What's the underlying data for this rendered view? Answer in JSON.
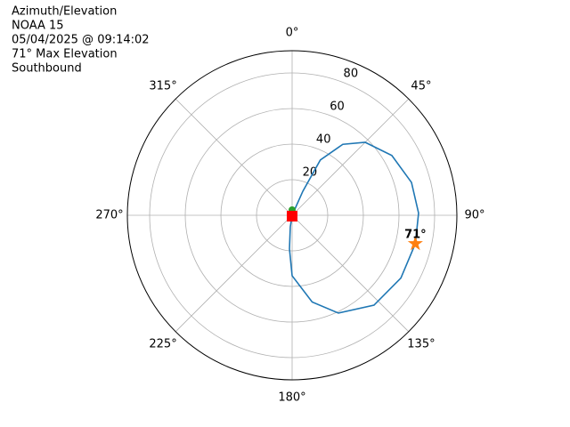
{
  "chart_data": {
    "type": "polar",
    "title_lines": [
      "Azimuth/Elevation",
      "NOAA 15",
      "05/04/2025 @ 09:14:02",
      "71° Max Elevation",
      "Southbound"
    ],
    "rlim": [
      0,
      92.5
    ],
    "rticks": [
      20,
      40,
      60,
      80
    ],
    "xticks": [
      {
        "value": 0,
        "label": "0°"
      },
      {
        "value": 45,
        "label": "45°"
      },
      {
        "value": 90,
        "label": "90°"
      },
      {
        "value": 135,
        "label": "135°"
      },
      {
        "value": 180,
        "label": "180°"
      },
      {
        "value": 225,
        "label": "225°"
      },
      {
        "value": 270,
        "label": "270°"
      },
      {
        "value": 315,
        "label": "315°"
      }
    ],
    "grid": true,
    "series": [
      {
        "color": "#1f77b4",
        "marker": "line",
        "theta": [
          0,
          24,
          27,
          35.5,
          45,
          59,
          74.6,
          89,
          103,
          120,
          137.7,
          154.7,
          167,
          180,
          184.5,
          189,
          180
        ],
        "values": [
          0,
          14.8,
          34.9,
          49,
          58,
          65.3,
          69.5,
          71,
          71,
          70.5,
          68.3,
          60.8,
          50,
          34,
          19,
          6.6,
          0
        ]
      },
      {
        "color": "#2ca02c",
        "marker": "circle",
        "theta": [
          0
        ],
        "values": [
          3
        ]
      },
      {
        "color": "#ff0000",
        "marker": "square",
        "theta": [
          180
        ],
        "values": [
          0.5
        ]
      },
      {
        "color": "#ff7f0e",
        "marker": "star",
        "theta": [
          103
        ],
        "values": [
          71
        ],
        "value_labels": [
          "71°"
        ]
      }
    ]
  }
}
